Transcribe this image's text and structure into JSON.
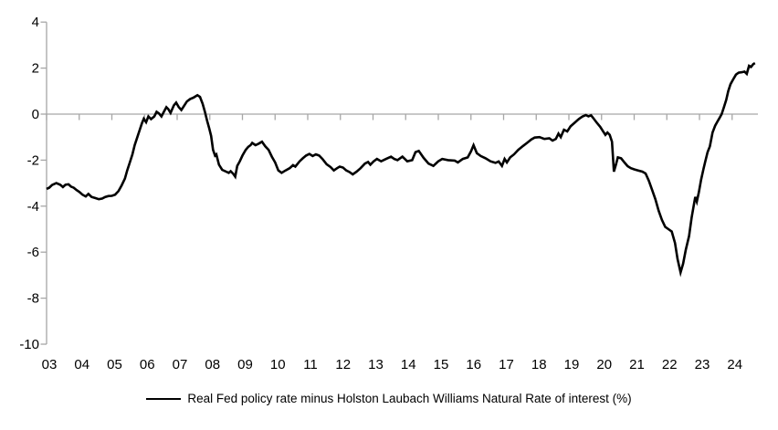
{
  "chart_data": {
    "type": "line",
    "title": "",
    "xlabel": "",
    "ylabel": "",
    "ylim": [
      -10,
      4
    ],
    "ytick_values": [
      4,
      2,
      0,
      -2,
      -4,
      -6,
      -8,
      -10
    ],
    "ytick_labels": [
      "4",
      "2",
      "0",
      "-2",
      "-4",
      "-6",
      "-8",
      "-10"
    ],
    "xtick_labels": [
      "03",
      "04",
      "05",
      "06",
      "07",
      "08",
      "09",
      "10",
      "11",
      "12",
      "13",
      "14",
      "15",
      "16",
      "17",
      "18",
      "19",
      "20",
      "21",
      "22",
      "23",
      "24"
    ],
    "x_start_year": 2003,
    "grid": "zero-baseline-only",
    "legend_position": "bottom-center",
    "axis_color": "#A6A6A6",
    "line_color": "#000000",
    "text_color": "#000000",
    "series": [
      {
        "name": "Real Fed policy rate minus Holston Laubach Williams Natural Rate of interest (%)",
        "color": "#000000",
        "points": [
          [
            2003.0,
            -3.25
          ],
          [
            2003.08,
            -3.2
          ],
          [
            2003.17,
            -3.08
          ],
          [
            2003.3,
            -3.0
          ],
          [
            2003.42,
            -3.07
          ],
          [
            2003.5,
            -3.17
          ],
          [
            2003.58,
            -3.07
          ],
          [
            2003.67,
            -3.05
          ],
          [
            2003.75,
            -3.15
          ],
          [
            2003.83,
            -3.2
          ],
          [
            2003.92,
            -3.3
          ],
          [
            2004.0,
            -3.38
          ],
          [
            2004.1,
            -3.5
          ],
          [
            2004.2,
            -3.58
          ],
          [
            2004.28,
            -3.47
          ],
          [
            2004.38,
            -3.6
          ],
          [
            2004.5,
            -3.65
          ],
          [
            2004.6,
            -3.7
          ],
          [
            2004.7,
            -3.67
          ],
          [
            2004.8,
            -3.6
          ],
          [
            2004.9,
            -3.56
          ],
          [
            2005.0,
            -3.55
          ],
          [
            2005.1,
            -3.5
          ],
          [
            2005.2,
            -3.35
          ],
          [
            2005.3,
            -3.1
          ],
          [
            2005.4,
            -2.8
          ],
          [
            2005.47,
            -2.45
          ],
          [
            2005.55,
            -2.1
          ],
          [
            2005.63,
            -1.75
          ],
          [
            2005.7,
            -1.35
          ],
          [
            2005.78,
            -1.0
          ],
          [
            2005.85,
            -0.7
          ],
          [
            2005.92,
            -0.4
          ],
          [
            2005.98,
            -0.2
          ],
          [
            2006.05,
            -0.35
          ],
          [
            2006.12,
            -0.1
          ],
          [
            2006.2,
            -0.22
          ],
          [
            2006.3,
            -0.1
          ],
          [
            2006.37,
            0.1
          ],
          [
            2006.45,
            0.02
          ],
          [
            2006.52,
            -0.1
          ],
          [
            2006.6,
            0.12
          ],
          [
            2006.67,
            0.3
          ],
          [
            2006.73,
            0.22
          ],
          [
            2006.8,
            0.05
          ],
          [
            2006.9,
            0.38
          ],
          [
            2006.97,
            0.5
          ],
          [
            2007.05,
            0.3
          ],
          [
            2007.13,
            0.18
          ],
          [
            2007.22,
            0.38
          ],
          [
            2007.3,
            0.55
          ],
          [
            2007.4,
            0.66
          ],
          [
            2007.5,
            0.72
          ],
          [
            2007.62,
            0.82
          ],
          [
            2007.7,
            0.75
          ],
          [
            2007.78,
            0.45
          ],
          [
            2007.85,
            0.1
          ],
          [
            2007.92,
            -0.3
          ],
          [
            2007.98,
            -0.6
          ],
          [
            2008.04,
            -0.95
          ],
          [
            2008.1,
            -1.55
          ],
          [
            2008.16,
            -1.8
          ],
          [
            2008.2,
            -1.75
          ],
          [
            2008.28,
            -2.2
          ],
          [
            2008.38,
            -2.42
          ],
          [
            2008.5,
            -2.5
          ],
          [
            2008.58,
            -2.55
          ],
          [
            2008.64,
            -2.48
          ],
          [
            2008.72,
            -2.6
          ],
          [
            2008.78,
            -2.72
          ],
          [
            2008.84,
            -2.25
          ],
          [
            2008.92,
            -2.05
          ],
          [
            2009.0,
            -1.8
          ],
          [
            2009.1,
            -1.55
          ],
          [
            2009.18,
            -1.42
          ],
          [
            2009.25,
            -1.35
          ],
          [
            2009.3,
            -1.25
          ],
          [
            2009.4,
            -1.35
          ],
          [
            2009.5,
            -1.28
          ],
          [
            2009.6,
            -1.2
          ],
          [
            2009.7,
            -1.4
          ],
          [
            2009.8,
            -1.55
          ],
          [
            2009.9,
            -1.85
          ],
          [
            2010.0,
            -2.1
          ],
          [
            2010.1,
            -2.45
          ],
          [
            2010.2,
            -2.55
          ],
          [
            2010.32,
            -2.45
          ],
          [
            2010.45,
            -2.35
          ],
          [
            2010.55,
            -2.22
          ],
          [
            2010.62,
            -2.28
          ],
          [
            2010.75,
            -2.05
          ],
          [
            2010.85,
            -1.92
          ],
          [
            2010.95,
            -1.8
          ],
          [
            2011.05,
            -1.73
          ],
          [
            2011.15,
            -1.82
          ],
          [
            2011.25,
            -1.75
          ],
          [
            2011.35,
            -1.8
          ],
          [
            2011.45,
            -1.95
          ],
          [
            2011.58,
            -2.18
          ],
          [
            2011.7,
            -2.3
          ],
          [
            2011.8,
            -2.45
          ],
          [
            2011.9,
            -2.35
          ],
          [
            2011.98,
            -2.28
          ],
          [
            2012.08,
            -2.32
          ],
          [
            2012.18,
            -2.45
          ],
          [
            2012.28,
            -2.52
          ],
          [
            2012.38,
            -2.62
          ],
          [
            2012.5,
            -2.5
          ],
          [
            2012.62,
            -2.35
          ],
          [
            2012.75,
            -2.15
          ],
          [
            2012.85,
            -2.08
          ],
          [
            2012.92,
            -2.2
          ],
          [
            2013.02,
            -2.05
          ],
          [
            2013.12,
            -1.95
          ],
          [
            2013.25,
            -2.05
          ],
          [
            2013.4,
            -1.95
          ],
          [
            2013.55,
            -1.85
          ],
          [
            2013.65,
            -1.95
          ],
          [
            2013.75,
            -2.0
          ],
          [
            2013.9,
            -1.85
          ],
          [
            2014.05,
            -2.05
          ],
          [
            2014.2,
            -2.0
          ],
          [
            2014.3,
            -1.65
          ],
          [
            2014.4,
            -1.6
          ],
          [
            2014.55,
            -1.9
          ],
          [
            2014.7,
            -2.15
          ],
          [
            2014.85,
            -2.25
          ],
          [
            2015.0,
            -2.05
          ],
          [
            2015.12,
            -1.95
          ],
          [
            2015.3,
            -2.0
          ],
          [
            2015.5,
            -2.02
          ],
          [
            2015.6,
            -2.1
          ],
          [
            2015.75,
            -1.95
          ],
          [
            2015.9,
            -1.88
          ],
          [
            2016.0,
            -1.62
          ],
          [
            2016.08,
            -1.35
          ],
          [
            2016.18,
            -1.7
          ],
          [
            2016.3,
            -1.82
          ],
          [
            2016.45,
            -1.92
          ],
          [
            2016.6,
            -2.05
          ],
          [
            2016.75,
            -2.12
          ],
          [
            2016.85,
            -2.06
          ],
          [
            2016.95,
            -2.25
          ],
          [
            2017.03,
            -1.95
          ],
          [
            2017.1,
            -2.1
          ],
          [
            2017.2,
            -1.88
          ],
          [
            2017.32,
            -1.75
          ],
          [
            2017.45,
            -1.55
          ],
          [
            2017.6,
            -1.38
          ],
          [
            2017.72,
            -1.25
          ],
          [
            2017.85,
            -1.1
          ],
          [
            2017.95,
            -1.02
          ],
          [
            2018.1,
            -1.0
          ],
          [
            2018.25,
            -1.08
          ],
          [
            2018.4,
            -1.05
          ],
          [
            2018.5,
            -1.15
          ],
          [
            2018.6,
            -1.08
          ],
          [
            2018.68,
            -0.85
          ],
          [
            2018.75,
            -1.0
          ],
          [
            2018.85,
            -0.68
          ],
          [
            2018.95,
            -0.75
          ],
          [
            2019.05,
            -0.53
          ],
          [
            2019.17,
            -0.38
          ],
          [
            2019.3,
            -0.22
          ],
          [
            2019.42,
            -0.1
          ],
          [
            2019.52,
            -0.04
          ],
          [
            2019.6,
            -0.1
          ],
          [
            2019.68,
            -0.05
          ],
          [
            2019.76,
            -0.2
          ],
          [
            2019.86,
            -0.38
          ],
          [
            2019.96,
            -0.55
          ],
          [
            2020.05,
            -0.75
          ],
          [
            2020.12,
            -0.9
          ],
          [
            2020.18,
            -0.8
          ],
          [
            2020.25,
            -0.9
          ],
          [
            2020.32,
            -1.2
          ],
          [
            2020.38,
            -2.5
          ],
          [
            2020.44,
            -2.2
          ],
          [
            2020.5,
            -1.88
          ],
          [
            2020.6,
            -1.92
          ],
          [
            2020.7,
            -2.1
          ],
          [
            2020.8,
            -2.26
          ],
          [
            2020.9,
            -2.35
          ],
          [
            2021.0,
            -2.4
          ],
          [
            2021.12,
            -2.45
          ],
          [
            2021.25,
            -2.5
          ],
          [
            2021.35,
            -2.58
          ],
          [
            2021.45,
            -2.9
          ],
          [
            2021.55,
            -3.3
          ],
          [
            2021.65,
            -3.7
          ],
          [
            2021.75,
            -4.2
          ],
          [
            2021.85,
            -4.6
          ],
          [
            2021.95,
            -4.9
          ],
          [
            2022.05,
            -5.0
          ],
          [
            2022.15,
            -5.1
          ],
          [
            2022.25,
            -5.6
          ],
          [
            2022.33,
            -6.3
          ],
          [
            2022.42,
            -6.88
          ],
          [
            2022.5,
            -6.5
          ],
          [
            2022.58,
            -5.9
          ],
          [
            2022.68,
            -5.3
          ],
          [
            2022.76,
            -4.5
          ],
          [
            2022.82,
            -4.0
          ],
          [
            2022.87,
            -3.6
          ],
          [
            2022.92,
            -3.8
          ],
          [
            2022.98,
            -3.4
          ],
          [
            2023.05,
            -2.85
          ],
          [
            2023.12,
            -2.4
          ],
          [
            2023.18,
            -2.05
          ],
          [
            2023.25,
            -1.65
          ],
          [
            2023.32,
            -1.4
          ],
          [
            2023.4,
            -0.8
          ],
          [
            2023.48,
            -0.5
          ],
          [
            2023.55,
            -0.32
          ],
          [
            2023.62,
            -0.15
          ],
          [
            2023.68,
            0.0
          ],
          [
            2023.75,
            0.3
          ],
          [
            2023.82,
            0.62
          ],
          [
            2023.88,
            1.0
          ],
          [
            2023.95,
            1.3
          ],
          [
            2024.05,
            1.55
          ],
          [
            2024.12,
            1.72
          ],
          [
            2024.2,
            1.8
          ],
          [
            2024.3,
            1.82
          ],
          [
            2024.38,
            1.85
          ],
          [
            2024.45,
            1.75
          ],
          [
            2024.52,
            2.1
          ],
          [
            2024.58,
            2.05
          ],
          [
            2024.65,
            2.18
          ],
          [
            2024.7,
            2.22
          ]
        ]
      }
    ]
  }
}
